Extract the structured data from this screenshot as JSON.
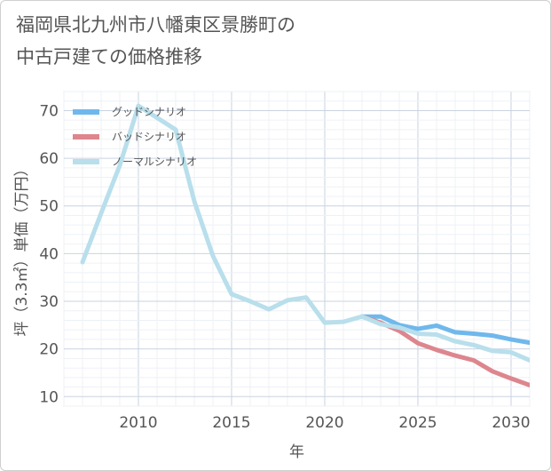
{
  "title_line1": "福岡県北九州市八幡東区景勝町の",
  "title_line2": "中古戸建ての価格推移",
  "chart_data": {
    "type": "line",
    "xlabel": "年",
    "ylabel": "坪（3.3㎡）単価（万円）",
    "xlim": [
      2006,
      2031
    ],
    "ylim": [
      8,
      74
    ],
    "xticks": [
      2010,
      2015,
      2020,
      2025,
      2030
    ],
    "yticks": [
      10,
      20,
      30,
      40,
      50,
      60,
      70
    ],
    "grid": true,
    "legend_position": "top-left",
    "series": [
      {
        "name": "グッドシナリオ",
        "color": "#6fb8ec",
        "x": [
          2022,
          2023,
          2024,
          2025,
          2026,
          2027,
          2028,
          2029,
          2030,
          2031
        ],
        "y": [
          26.8,
          26.8,
          25.0,
          24.2,
          24.9,
          23.5,
          23.2,
          22.8,
          22.0,
          21.3
        ]
      },
      {
        "name": "バッドシナリオ",
        "color": "#dd868e",
        "x": [
          2022,
          2023,
          2024,
          2025,
          2026,
          2027,
          2028,
          2029,
          2030,
          2031
        ],
        "y": [
          26.8,
          25.5,
          23.8,
          21.2,
          19.8,
          18.6,
          17.6,
          15.3,
          13.8,
          12.4
        ]
      },
      {
        "name": "ノーマルシナリオ",
        "color": "#b8dfeb",
        "x": [
          2007,
          2008,
          2009,
          2010,
          2011,
          2012,
          2013,
          2014,
          2015,
          2016,
          2017,
          2018,
          2019,
          2020,
          2021,
          2022,
          2023,
          2024,
          2025,
          2026,
          2027,
          2028,
          2029,
          2030,
          2031
        ],
        "y": [
          38.2,
          48.5,
          58.5,
          71.0,
          68.5,
          66.0,
          51.0,
          39.5,
          31.5,
          30.0,
          28.3,
          30.2,
          30.8,
          25.5,
          25.7,
          26.8,
          25.2,
          24.5,
          23.2,
          23.0,
          21.6,
          20.8,
          19.6,
          19.3,
          17.6
        ]
      }
    ]
  }
}
